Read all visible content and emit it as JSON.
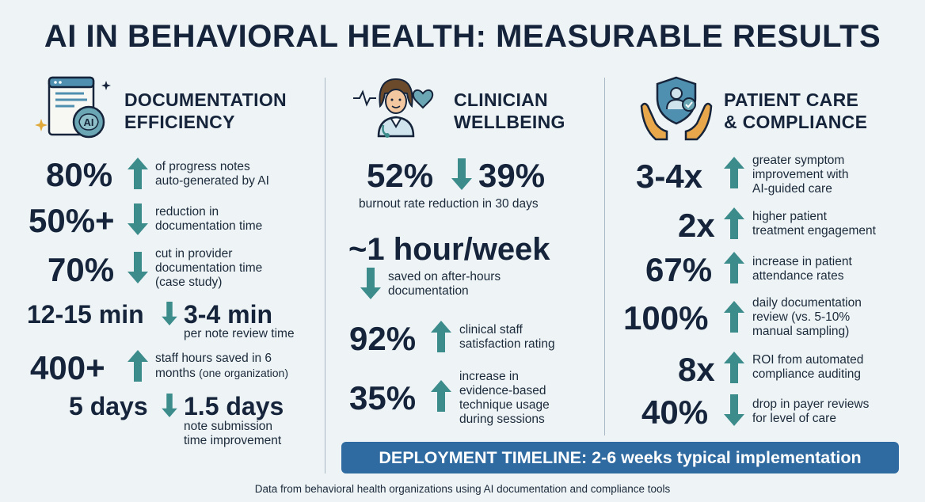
{
  "title": "AI IN BEHAVIORAL HEALTH: MEASURABLE RESULTS",
  "colors": {
    "accent_teal": "#3d8c8c",
    "dark_navy": "#15243a",
    "banner_blue": "#2f6aa0",
    "background": "#eef3f6"
  },
  "columns": {
    "documentation": {
      "icon": "document-ai-brain-icon",
      "heading_line1": "DOCUMENTATION",
      "heading_line2": "EFFICIENCY",
      "stats": [
        {
          "value": "80%",
          "arrow": "up",
          "desc1": "of progress notes",
          "desc2": "auto-generated by AI"
        },
        {
          "value": "50%+",
          "arrow": "down",
          "desc1": "reduction in",
          "desc2": "documentation time"
        },
        {
          "value": "70%",
          "arrow": "down",
          "desc1": "cut in provider",
          "desc2": "documentation time",
          "desc3": "(case study)"
        },
        {
          "from": "12-15 min",
          "to": "3-4 min",
          "arrow": "down",
          "desc1": "per note review time"
        },
        {
          "value": "400+",
          "arrow": "up",
          "desc1": "staff hours saved in 6",
          "desc2a": "months",
          "desc2b": "(one organization)"
        },
        {
          "from": "5 days",
          "to": "1.5 days",
          "arrow": "down",
          "desc1": "note submission",
          "desc2": "time improvement"
        }
      ]
    },
    "wellbeing": {
      "icon": "clinician-heart-icon",
      "heading_line1": "CLINICIAN",
      "heading_line2": "WELLBEING",
      "stats": [
        {
          "from": "52%",
          "to": "39%",
          "arrow": "down",
          "desc1": "burnout rate reduction in 30 days"
        },
        {
          "value": "~1 hour/week",
          "arrow": "down",
          "desc1": "saved on after-hours",
          "desc2": "documentation"
        },
        {
          "value": "92%",
          "arrow": "up",
          "desc1": "clinical staff",
          "desc2": "satisfaction rating"
        },
        {
          "value": "35%",
          "arrow": "up",
          "desc1": "increase in",
          "desc2": "evidence-based",
          "desc3": "technique usage",
          "desc4": "during sessions"
        }
      ]
    },
    "patient": {
      "icon": "hands-shield-patient-icon",
      "heading_line1": "PATIENT CARE",
      "heading_line2": "& COMPLIANCE",
      "stats": [
        {
          "value": "3-4x",
          "arrow": "up",
          "desc1": "greater symptom",
          "desc2": "improvement with",
          "desc3": "AI-guided care"
        },
        {
          "value": "2x",
          "arrow": "up",
          "desc1": "higher patient",
          "desc2": "treatment engagement"
        },
        {
          "value": "67%",
          "arrow": "up",
          "desc1": "increase in patient",
          "desc2": "attendance rates"
        },
        {
          "value": "100%",
          "arrow": "up",
          "desc1": "daily documentation",
          "desc2": "review (vs. 5-10%",
          "desc3": "manual sampling)"
        },
        {
          "value": "8x",
          "arrow": "up",
          "desc1": "ROI from automated",
          "desc2": "compliance auditing"
        },
        {
          "value": "40%",
          "arrow": "down",
          "desc1": "drop in payer reviews",
          "desc2": "for level of care"
        }
      ]
    }
  },
  "banner": "DEPLOYMENT TIMELINE: 2-6 weeks typical implementation",
  "footnote": "Data from behavioral health organizations using AI documentation and compliance tools"
}
